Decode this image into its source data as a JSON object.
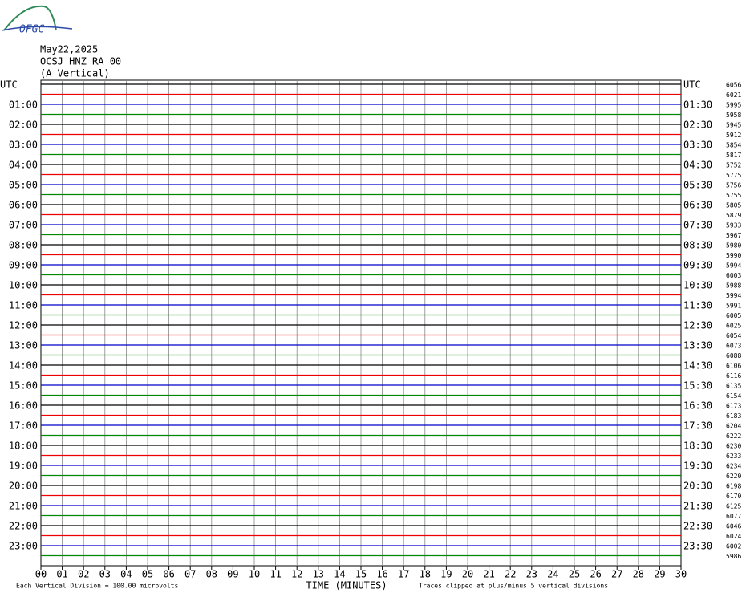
{
  "logo": "OFGC",
  "header": {
    "date": "May22,2025",
    "station": "OCSJ HNZ RA 00",
    "component": "(A Vertical)"
  },
  "left_labels": [
    "UTC",
    "01:00",
    "02:00",
    "03:00",
    "04:00",
    "05:00",
    "06:00",
    "07:00",
    "08:00",
    "09:00",
    "10:00",
    "11:00",
    "12:00",
    "13:00",
    "14:00",
    "15:00",
    "16:00",
    "17:00",
    "18:00",
    "19:00",
    "20:00",
    "21:00",
    "22:00",
    "23:00"
  ],
  "right_labels": [
    "UTC",
    "01:30",
    "02:30",
    "03:30",
    "04:30",
    "05:30",
    "06:30",
    "07:30",
    "08:30",
    "09:30",
    "10:30",
    "11:30",
    "12:30",
    "13:30",
    "14:30",
    "15:30",
    "16:30",
    "17:30",
    "18:30",
    "19:30",
    "20:30",
    "21:30",
    "22:30",
    "23:30"
  ],
  "trace_counts": [
    "6056",
    "6021",
    "5995",
    "5958",
    "5945",
    "5912",
    "5854",
    "5817",
    "5752",
    "5775",
    "5756",
    "5755",
    "5805",
    "5879",
    "5933",
    "5967",
    "5980",
    "5990",
    "5994",
    "6003",
    "5988",
    "5994",
    "5991",
    "6005",
    "6025",
    "6054",
    "6073",
    "6088",
    "6106",
    "6116",
    "6135",
    "6154",
    "6173",
    "6183",
    "6204",
    "6222",
    "6230",
    "6233",
    "6234",
    "6220",
    "6198",
    "6170",
    "6125",
    "6077",
    "6046",
    "6024",
    "6002",
    "5986"
  ],
  "x_ticks": [
    "00",
    "01",
    "02",
    "03",
    "04",
    "05",
    "06",
    "07",
    "08",
    "09",
    "10",
    "11",
    "12",
    "13",
    "14",
    "15",
    "16",
    "17",
    "18",
    "19",
    "20",
    "21",
    "22",
    "23",
    "24",
    "25",
    "26",
    "27",
    "28",
    "29",
    "30"
  ],
  "x_title": "TIME (MINUTES)",
  "footer": {
    "scale": "Each Vertical Division =  100.00 microvolts",
    "clip": "Traces clipped at plus/minus 5 vertical divisions"
  }
}
